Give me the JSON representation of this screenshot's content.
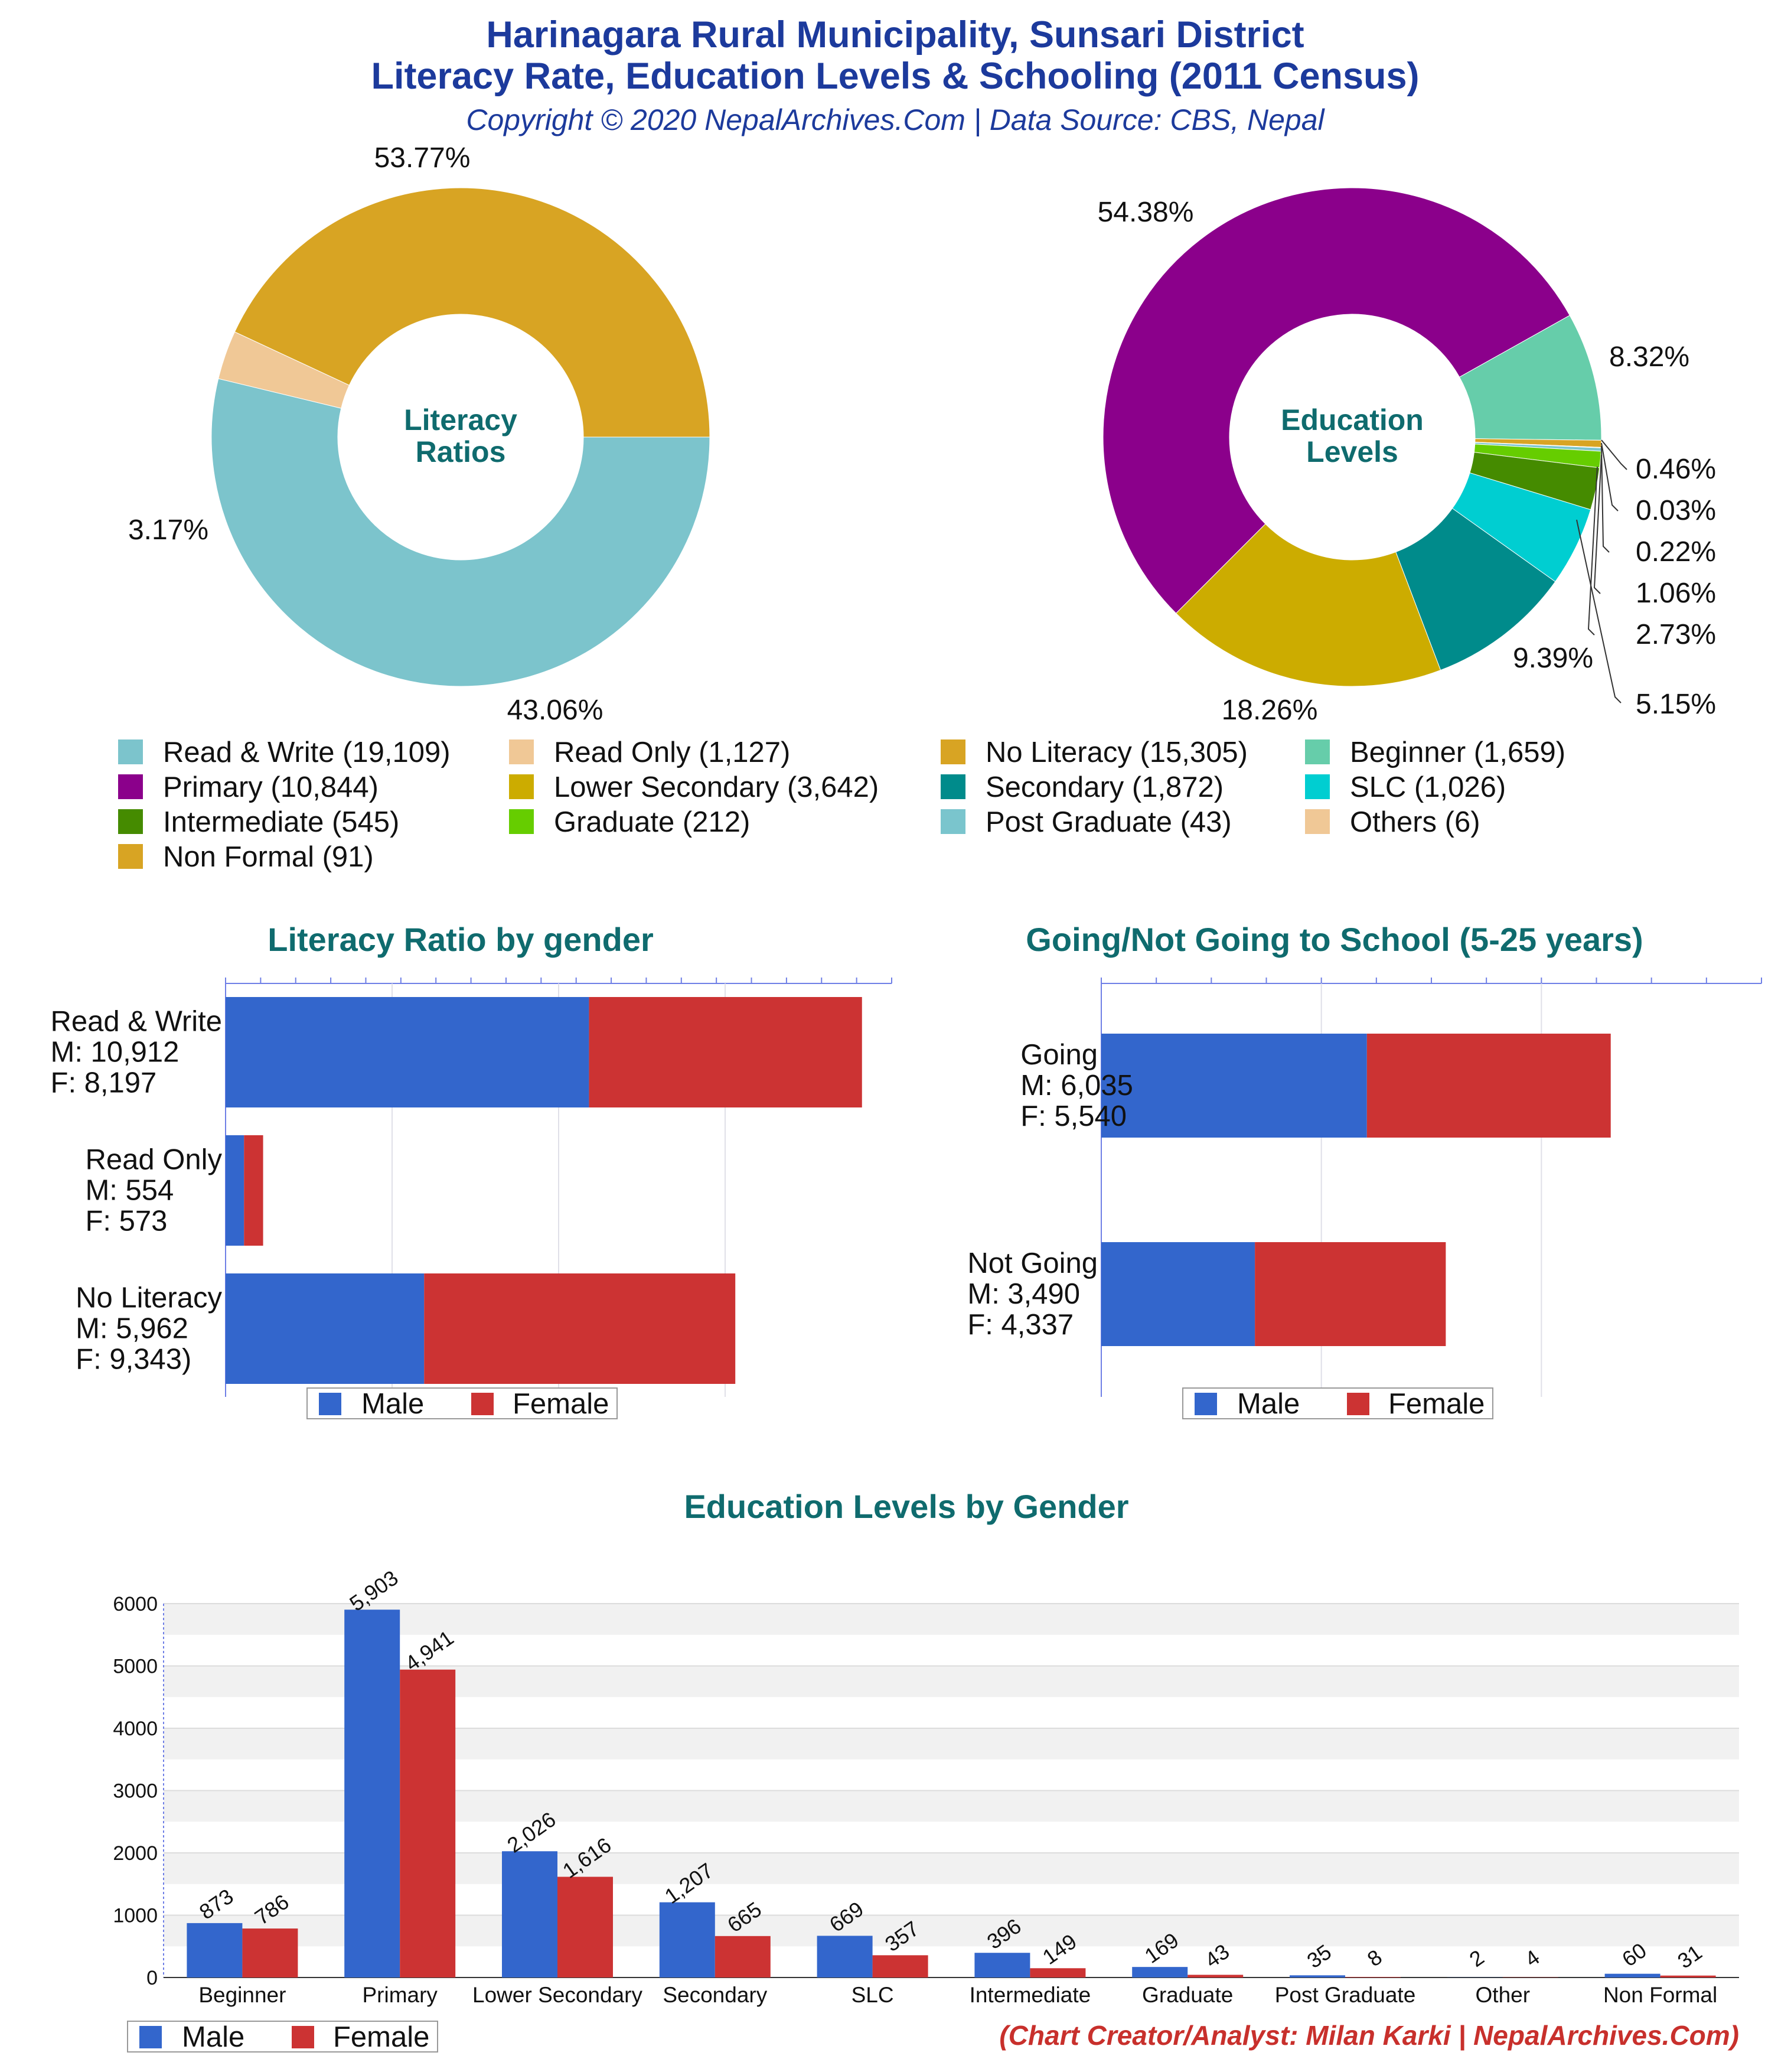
{
  "header": {
    "title_line1": "Harinagara Rural Municipality, Sunsari District",
    "title_line2": "Literacy Rate, Education Levels & Schooling (2011 Census)",
    "subtitle": "Copyright © 2020 NepalArchives.Com | Data Source: CBS, Nepal"
  },
  "colors": {
    "male": "#3366cc",
    "female": "#cc3333",
    "read_write": "#7cc4cc",
    "read_only": "#f0c896",
    "no_literacy": "#d8a423",
    "beginner": "#66cdaa",
    "primary": "#8b008b",
    "lower_secondary": "#ccac00",
    "secondary": "#008b8b",
    "slc": "#00ced1",
    "intermediate": "#458b00",
    "graduate": "#66cd00",
    "post_graduate": "#7ac5cd",
    "others": "#f0c896",
    "non_formal": "#d8a423",
    "section_title": "#0f6b6e",
    "title": "#1c3a9c",
    "credit": "#c8302c"
  },
  "legend": {
    "items": [
      {
        "label": "Read & Write (19,109)",
        "color": "#7cc4cc"
      },
      {
        "label": "Read Only (1,127)",
        "color": "#f0c896"
      },
      {
        "label": "No Literacy (15,305)",
        "color": "#d8a423"
      },
      {
        "label": "Beginner (1,659)",
        "color": "#66cdaa"
      },
      {
        "label": "Primary (10,844)",
        "color": "#8b008b"
      },
      {
        "label": "Lower Secondary (3,642)",
        "color": "#ccac00"
      },
      {
        "label": "Secondary (1,872)",
        "color": "#008b8b"
      },
      {
        "label": "SLC (1,026)",
        "color": "#00ced1"
      },
      {
        "label": "Intermediate (545)",
        "color": "#458b00"
      },
      {
        "label": "Graduate (212)",
        "color": "#66cd00"
      },
      {
        "label": "Post Graduate (43)",
        "color": "#7ac5cd"
      },
      {
        "label": "Others (6)",
        "color": "#f0c896"
      },
      {
        "label": "Non Formal (91)",
        "color": "#d8a423"
      }
    ]
  },
  "bar_legend": {
    "male": "Male",
    "female": "Female"
  },
  "footer": {
    "credit": "(Chart Creator/Analyst: Milan Karki | NepalArchives.Com)"
  },
  "chart_data": [
    {
      "type": "pie",
      "center_label": [
        "Literacy",
        "Ratios"
      ],
      "categories": [
        "Read & Write",
        "Read Only",
        "No Literacy"
      ],
      "values": [
        19109,
        1127,
        15305
      ],
      "percent_labels": [
        "53.77%",
        "3.17%",
        "43.06%"
      ]
    },
    {
      "type": "pie",
      "center_label": [
        "Education",
        "Levels"
      ],
      "categories": [
        "Primary",
        "Beginner",
        "Non Formal",
        "Others",
        "Post Graduate",
        "Graduate",
        "Intermediate",
        "SLC",
        "Secondary",
        "Lower Secondary"
      ],
      "values": [
        10844,
        1659,
        91,
        6,
        43,
        212,
        545,
        1026,
        1872,
        3642
      ],
      "percent_labels": [
        "54.38%",
        "8.32%",
        "0.46%",
        "0.03%",
        "0.22%",
        "1.06%",
        "2.73%",
        "5.15%",
        "9.39%",
        "18.26%"
      ]
    },
    {
      "type": "bar",
      "orientation": "horizontal",
      "stacked": true,
      "title": "Literacy Ratio by gender",
      "categories": [
        "Read & Write",
        "Read Only",
        "No Literacy"
      ],
      "category_labels": [
        [
          "Read & Write",
          "M: 10,912",
          "F: 8,197"
        ],
        [
          "Read Only",
          "M: 554",
          "F: 573"
        ],
        [
          "No Literacy",
          "M: 5,962",
          "F: 9,343)"
        ]
      ],
      "series": [
        {
          "name": "Male",
          "values": [
            10912,
            554,
            5962
          ]
        },
        {
          "name": "Female",
          "values": [
            8197,
            573,
            9343
          ]
        }
      ],
      "xlim": [
        0,
        20000
      ],
      "legend": "bottom"
    },
    {
      "type": "bar",
      "orientation": "horizontal",
      "stacked": true,
      "title": "Going/Not Going to School (5-25 years)",
      "categories": [
        "Going",
        "Not Going"
      ],
      "category_labels": [
        [
          "Going",
          "M: 6,035",
          "F: 5,540"
        ],
        [
          "Not Going",
          "M: 3,490",
          "F: 4,337"
        ]
      ],
      "series": [
        {
          "name": "Male",
          "values": [
            6035,
            3490
          ]
        },
        {
          "name": "Female",
          "values": [
            5540,
            4337
          ]
        }
      ],
      "xlim": [
        0,
        15000
      ],
      "legend": "bottom"
    },
    {
      "type": "bar",
      "title": "Education Levels by Gender",
      "categories": [
        "Beginner",
        "Primary",
        "Lower Secondary",
        "Secondary",
        "SLC",
        "Intermediate",
        "Graduate",
        "Post Graduate",
        "Other",
        "Non Formal"
      ],
      "series": [
        {
          "name": "Male",
          "values": [
            873,
            5903,
            2026,
            1207,
            669,
            396,
            169,
            35,
            2,
            60
          ]
        },
        {
          "name": "Female",
          "values": [
            786,
            4941,
            1616,
            665,
            357,
            149,
            43,
            8,
            4,
            31
          ]
        }
      ],
      "value_labels": {
        "Male": [
          "873",
          "5,903",
          "2,026",
          "1,207",
          "669",
          "396",
          "169",
          "35",
          "2",
          "60"
        ],
        "Female": [
          "786",
          "4,941",
          "1,616",
          "665",
          "357",
          "149",
          "43",
          "8",
          "4",
          "31"
        ]
      },
      "yticks": [
        "0",
        "1000",
        "2000",
        "3000",
        "4000",
        "5000",
        "6000"
      ],
      "ylim": [
        0,
        6000
      ],
      "grid": true,
      "legend": "bottom-left"
    }
  ]
}
